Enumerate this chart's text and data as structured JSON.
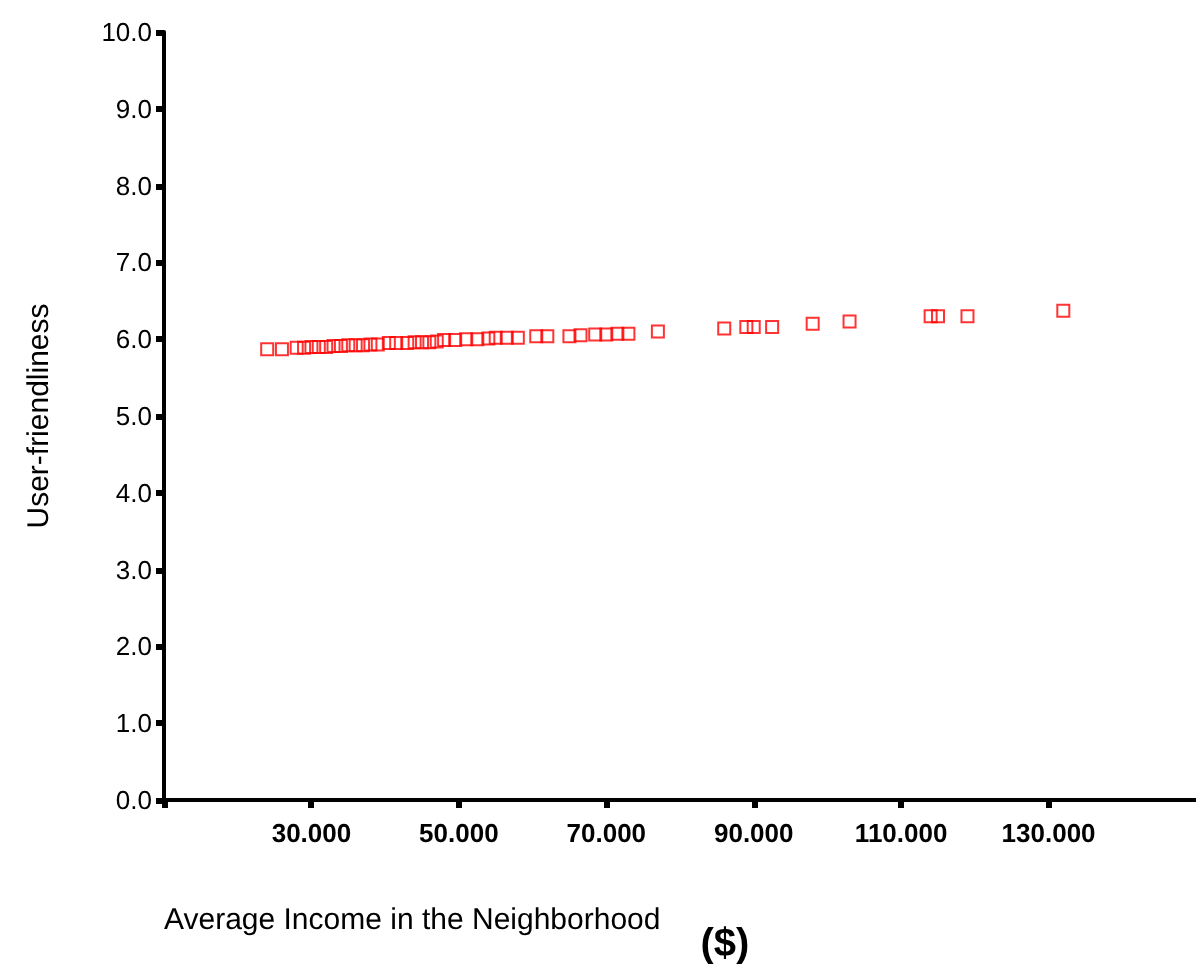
{
  "chart_data": {
    "type": "scatter",
    "xlabel": "Average Income in the Neighborhood ($)",
    "ylabel": "User-friendliness",
    "x": [
      24,
      26,
      28,
      29,
      30,
      31,
      32,
      33,
      34,
      35,
      36,
      37,
      38,
      39,
      40.5,
      41.5,
      43,
      44,
      45,
      46,
      47,
      48,
      49.5,
      51,
      52.5,
      54,
      55,
      56.5,
      58,
      60.5,
      62,
      65,
      66.5,
      68.5,
      70,
      71.5,
      73,
      77,
      86,
      89,
      90,
      92.5,
      98,
      103,
      114,
      115,
      119,
      132
    ],
    "series": [
      {
        "color": "#ff0000",
        "values": [
          5.87,
          5.87,
          5.89,
          5.89,
          5.9,
          5.9,
          5.9,
          5.91,
          5.91,
          5.92,
          5.92,
          5.92,
          5.93,
          5.93,
          5.95,
          5.95,
          5.95,
          5.96,
          5.96,
          5.96,
          5.97,
          5.99,
          5.99,
          6.0,
          6.0,
          6.01,
          6.02,
          6.02,
          6.02,
          6.04,
          6.04,
          6.04,
          6.05,
          6.06,
          6.06,
          6.07,
          6.07,
          6.1,
          6.14,
          6.16,
          6.16,
          6.16,
          6.2,
          6.23,
          6.3,
          6.3,
          6.3,
          6.37
        ]
      }
    ],
    "xlim": [
      10,
      150
    ],
    "xticks": [
      {
        "value": 10,
        "label": null
      },
      {
        "value": 30,
        "label": "30.000"
      },
      {
        "value": 50,
        "label": "50.000"
      },
      {
        "value": 70,
        "label": "70.000"
      },
      {
        "value": 90,
        "label": "90.000"
      },
      {
        "value": 110,
        "label": "110.000"
      },
      {
        "value": 130,
        "label": "130.000"
      }
    ],
    "ylim": [
      0,
      10
    ],
    "yticks": [
      {
        "value": 0,
        "label": "0.0"
      },
      {
        "value": 1,
        "label": "1.0"
      },
      {
        "value": 2,
        "label": "2.0"
      },
      {
        "value": 3,
        "label": "3.0"
      },
      {
        "value": 4,
        "label": "4.0"
      },
      {
        "value": 5,
        "label": "5.0"
      },
      {
        "value": 6,
        "label": "6.0"
      },
      {
        "value": 7,
        "label": "7.0"
      },
      {
        "value": 8,
        "label": "8.0"
      },
      {
        "value": 9,
        "label": "9.0"
      },
      {
        "value": 10,
        "label": "10.0"
      }
    ],
    "marker": "square",
    "grid": false
  }
}
